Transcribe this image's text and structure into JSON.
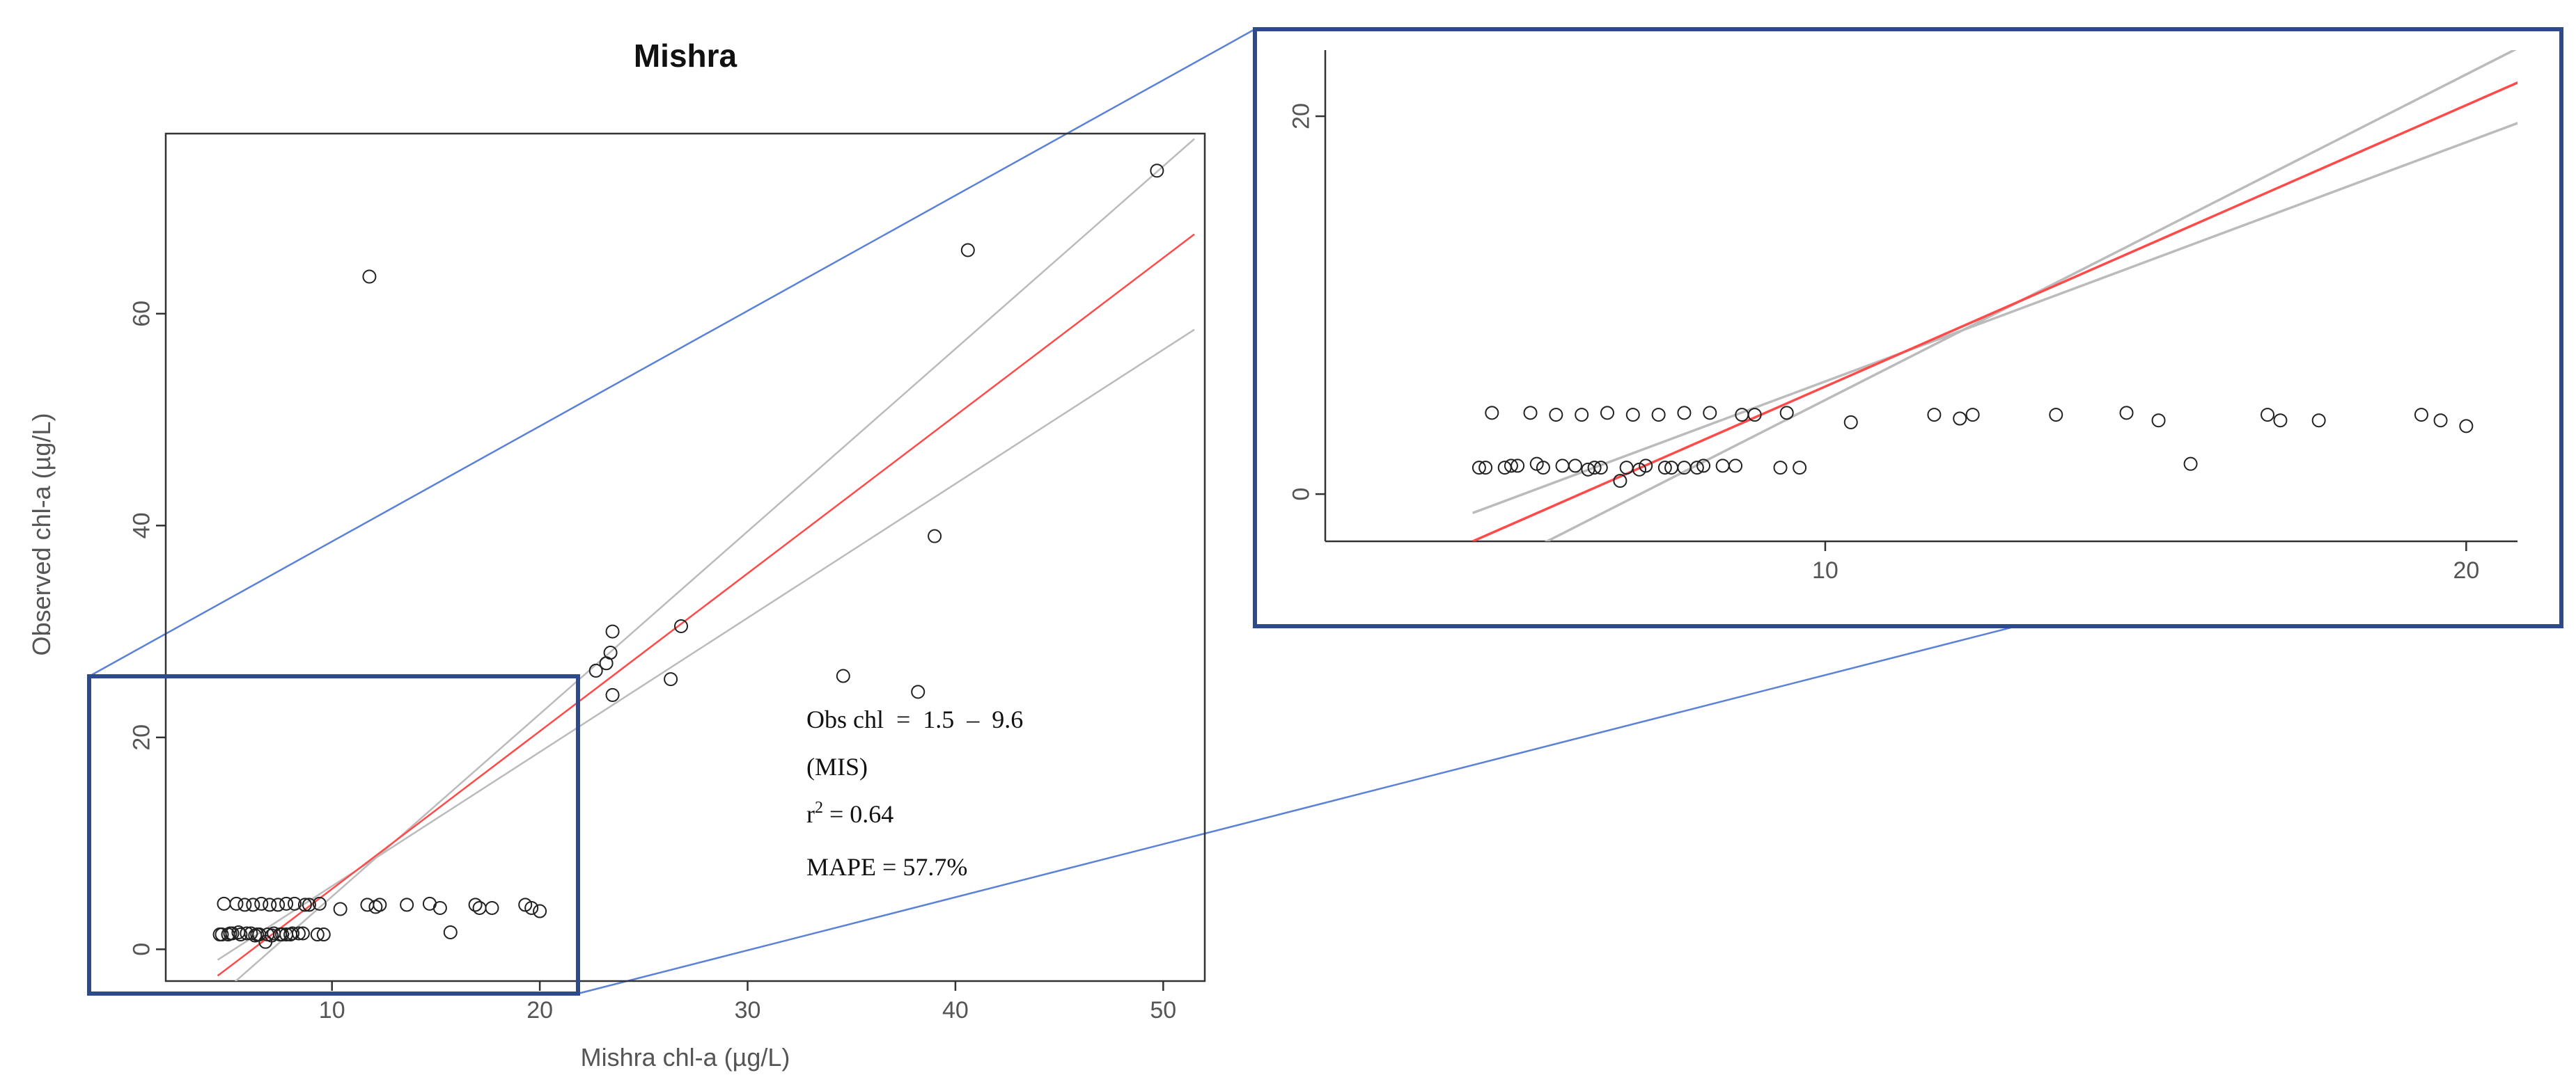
{
  "chart_data": [
    {
      "type": "scatter",
      "title": "Mishra",
      "xlabel": "Mishra chl-a (µg/L)",
      "ylabel": "Observed chl-a (µg/L)",
      "xlim": [
        2,
        52
      ],
      "ylim": [
        -3,
        77
      ],
      "xticks": [
        10,
        20,
        30,
        40,
        50
      ],
      "yticks": [
        0,
        20,
        40,
        60
      ],
      "annotation": {
        "eq_line1": "Obs chl  =  1.5  –  9.6",
        "eq_line2": "(MIS)",
        "r2_prefix": "r",
        "r2_sup": "2",
        "r2_suffix": " = 0.64",
        "mape": "MAPE = 57.7%"
      },
      "fit_line": {
        "color": "#ff4a4a",
        "x": [
          4.5,
          51.5
        ],
        "y": [
          -2.5,
          67.5
        ]
      },
      "confidence_lines": {
        "color": "#bbbbbb",
        "upper": {
          "x": [
            4.5,
            51.5
          ],
          "y": [
            -4.5,
            76.5
          ]
        },
        "lower": {
          "x": [
            4.5,
            51.5
          ],
          "y": [
            -1,
            58.5
          ]
        }
      },
      "points": {
        "x": [
          11.8,
          49.7,
          40.6,
          39.0,
          23.5,
          26.8,
          23.4,
          23.2,
          22.7,
          26.3,
          34.6,
          38.2,
          23.5,
          4.8,
          5.4,
          5.8,
          6.2,
          6.6,
          7.0,
          7.4,
          7.8,
          8.2,
          8.7,
          9.4,
          10.4,
          11.7,
          12.1,
          12.3,
          13.6,
          14.7,
          15.2,
          16.9,
          17.1,
          17.7,
          19.3,
          19.6,
          20.0,
          15.7,
          4.6,
          4.7,
          5.0,
          5.2,
          5.6,
          6.1,
          6.5,
          6.9,
          7.2,
          7.6,
          8.0,
          8.4,
          9.3,
          9.6,
          5.1,
          5.5,
          6.3,
          6.8,
          7.5,
          8.1,
          8.6,
          8.9,
          6.4,
          7.1,
          7.8,
          5.9
        ],
        "y": [
          63.5,
          73.5,
          66.0,
          39.0,
          30.0,
          30.5,
          28.0,
          27.0,
          26.3,
          25.5,
          25.8,
          24.3,
          24.0,
          4.3,
          4.3,
          4.2,
          4.2,
          4.3,
          4.2,
          4.2,
          4.3,
          4.3,
          4.2,
          4.3,
          3.8,
          4.2,
          4.0,
          4.2,
          4.2,
          4.3,
          3.9,
          4.2,
          3.9,
          3.9,
          4.2,
          3.9,
          3.6,
          1.6,
          1.4,
          1.4,
          1.4,
          1.5,
          1.4,
          1.5,
          1.4,
          1.4,
          1.5,
          1.4,
          1.4,
          1.5,
          1.4,
          1.4,
          1.5,
          1.6,
          1.3,
          0.7,
          1.4,
          1.5,
          1.5,
          4.2,
          1.4,
          1.3,
          1.4,
          1.5
        ]
      }
    },
    {
      "type": "scatter",
      "title": "",
      "xlim": [
        2.2,
        20.8
      ],
      "ylim": [
        -2.5,
        23.5
      ],
      "xticks": [
        10,
        20
      ],
      "yticks": [
        0,
        20
      ],
      "points_from": "main plot, region x < 21, y < 21"
    }
  ],
  "colors": {
    "zoom_box_border": "#2e4a8c",
    "connector_lines": "#5b82d6",
    "axis": "#333333",
    "point_stroke": "#222222"
  }
}
